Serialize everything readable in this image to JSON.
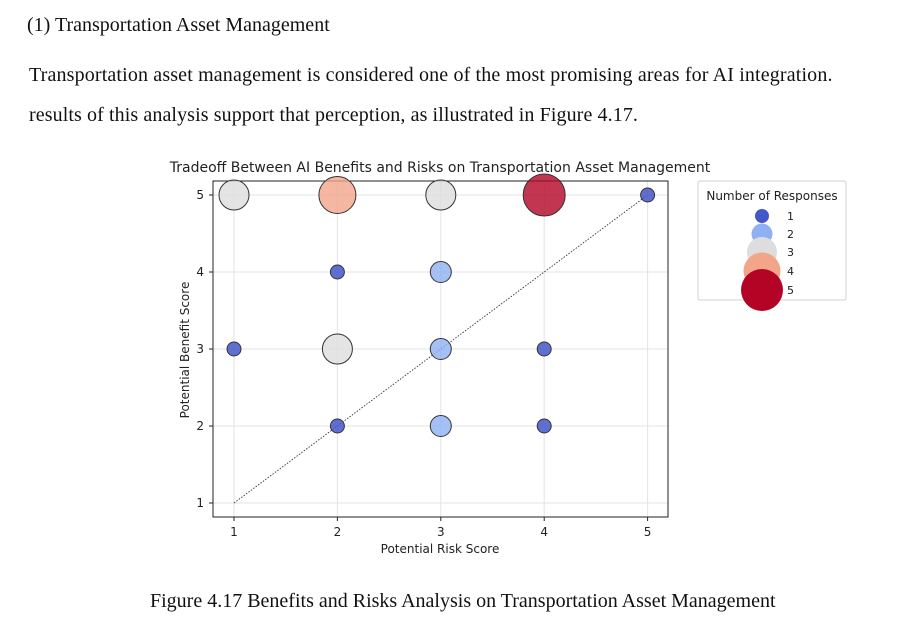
{
  "section": {
    "heading": "(1) Transportation Asset Management",
    "paragraph_line1": "Transportation asset management is considered one of the most promising areas for AI integration.",
    "paragraph_line2": "results of this analysis support that perception, as illustrated in Figure 4.17."
  },
  "figure": {
    "caption": "Figure 4.17 Benefits and Risks Analysis on Transportation Asset Management"
  },
  "chart_data": {
    "type": "scatter",
    "title": "Tradeoff Between AI Benefits and Risks on Transportation Asset Management",
    "xlabel": "Potential Risk Score",
    "ylabel": "Potential Benefit Score",
    "xlim": [
      1,
      5
    ],
    "ylim": [
      1,
      5
    ],
    "xticks": [
      "1",
      "2",
      "3",
      "4",
      "5"
    ],
    "yticks": [
      "1",
      "2",
      "3",
      "4",
      "5"
    ],
    "grid": true,
    "reference_line": {
      "from": [
        1,
        1
      ],
      "to": [
        5,
        5
      ],
      "style": "dotted"
    },
    "size_variable": "Number of Responses",
    "points": [
      {
        "x": 1,
        "y": 5,
        "count": 3
      },
      {
        "x": 2,
        "y": 5,
        "count": 4
      },
      {
        "x": 3,
        "y": 5,
        "count": 3
      },
      {
        "x": 4,
        "y": 5,
        "count": 5
      },
      {
        "x": 5,
        "y": 5,
        "count": 1
      },
      {
        "x": 2,
        "y": 4,
        "count": 1
      },
      {
        "x": 3,
        "y": 4,
        "count": 2
      },
      {
        "x": 1,
        "y": 3,
        "count": 1
      },
      {
        "x": 2,
        "y": 3,
        "count": 3
      },
      {
        "x": 3,
        "y": 3,
        "count": 2
      },
      {
        "x": 4,
        "y": 3,
        "count": 1
      },
      {
        "x": 2,
        "y": 2,
        "count": 1
      },
      {
        "x": 3,
        "y": 2,
        "count": 2
      },
      {
        "x": 4,
        "y": 2,
        "count": 1
      }
    ],
    "legend": {
      "title": "Number of Responses",
      "placement": "outside-right",
      "entries": [
        {
          "label": "1",
          "count": 1
        },
        {
          "label": "2",
          "count": 2
        },
        {
          "label": "3",
          "count": 3
        },
        {
          "label": "4",
          "count": 4
        },
        {
          "label": "5",
          "count": 5
        }
      ]
    },
    "colors": {
      "1": "#4457c9",
      "2": "#8fb0f2",
      "3": "#dddddd",
      "4": "#f2a589",
      "5": "#b40426"
    }
  }
}
